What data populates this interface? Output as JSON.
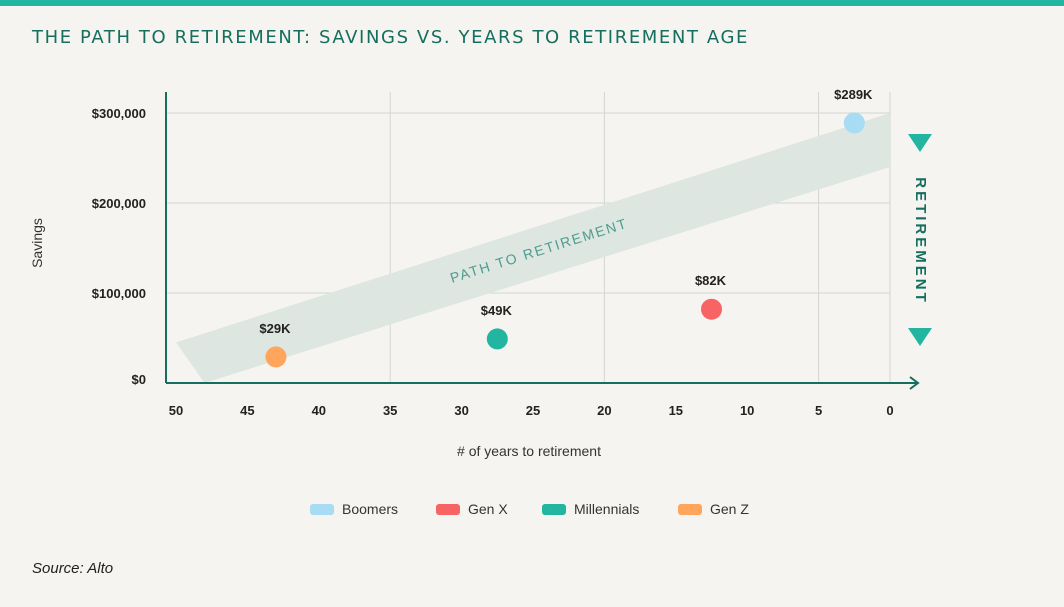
{
  "title": "THE PATH TO RETIREMENT: SAVINGS VS. YEARS TO RETIREMENT AGE",
  "source": "Source: Alto",
  "colors": {
    "accent": "#22b5a0",
    "band": "#dde6e0",
    "axis": "#156e5e",
    "grid": "#d4d4d0"
  },
  "chart_data": {
    "type": "scatter",
    "xlabel": "# of years to retirement",
    "ylabel": "Savings",
    "xlim": [
      50,
      0
    ],
    "ylim": [
      0,
      300000
    ],
    "x_ticks": [
      {
        "value": 50,
        "label": "50"
      },
      {
        "value": 45,
        "label": "45"
      },
      {
        "value": 40,
        "label": "40"
      },
      {
        "value": 35,
        "label": "35"
      },
      {
        "value": 30,
        "label": "30"
      },
      {
        "value": 25,
        "label": "25"
      },
      {
        "value": 20,
        "label": "20"
      },
      {
        "value": 15,
        "label": "15"
      },
      {
        "value": 10,
        "label": "10"
      },
      {
        "value": 5,
        "label": "5"
      },
      {
        "value": 0,
        "label": "0"
      }
    ],
    "y_ticks": [
      {
        "value": 0,
        "label": "$0"
      },
      {
        "value": 100000,
        "label": "$100,000"
      },
      {
        "value": 200000,
        "label": "$200,000"
      },
      {
        "value": 300000,
        "label": "$300,000"
      }
    ],
    "grid": true,
    "series": [
      {
        "name": "Boomers",
        "color": "#a8dcf5",
        "x": 2.5,
        "y": 289000,
        "label": "$289K"
      },
      {
        "name": "Gen X",
        "color": "#f86464",
        "x": 12.5,
        "y": 82000,
        "label": "$82K"
      },
      {
        "name": "Millennials",
        "color": "#22b5a0",
        "x": 27.5,
        "y": 49000,
        "label": "$49K"
      },
      {
        "name": "Gen Z",
        "color": "#ffa65c",
        "x": 43,
        "y": 29000,
        "label": "$29K"
      }
    ],
    "band": {
      "label": "PATH TO RETIREMENT",
      "lower": [
        [
          48,
          0
        ],
        [
          0,
          240000
        ]
      ],
      "upper": [
        [
          50,
          45000
        ],
        [
          0,
          300000
        ]
      ]
    },
    "annotation": "RETIREMENT",
    "legend_position": "bottom"
  }
}
